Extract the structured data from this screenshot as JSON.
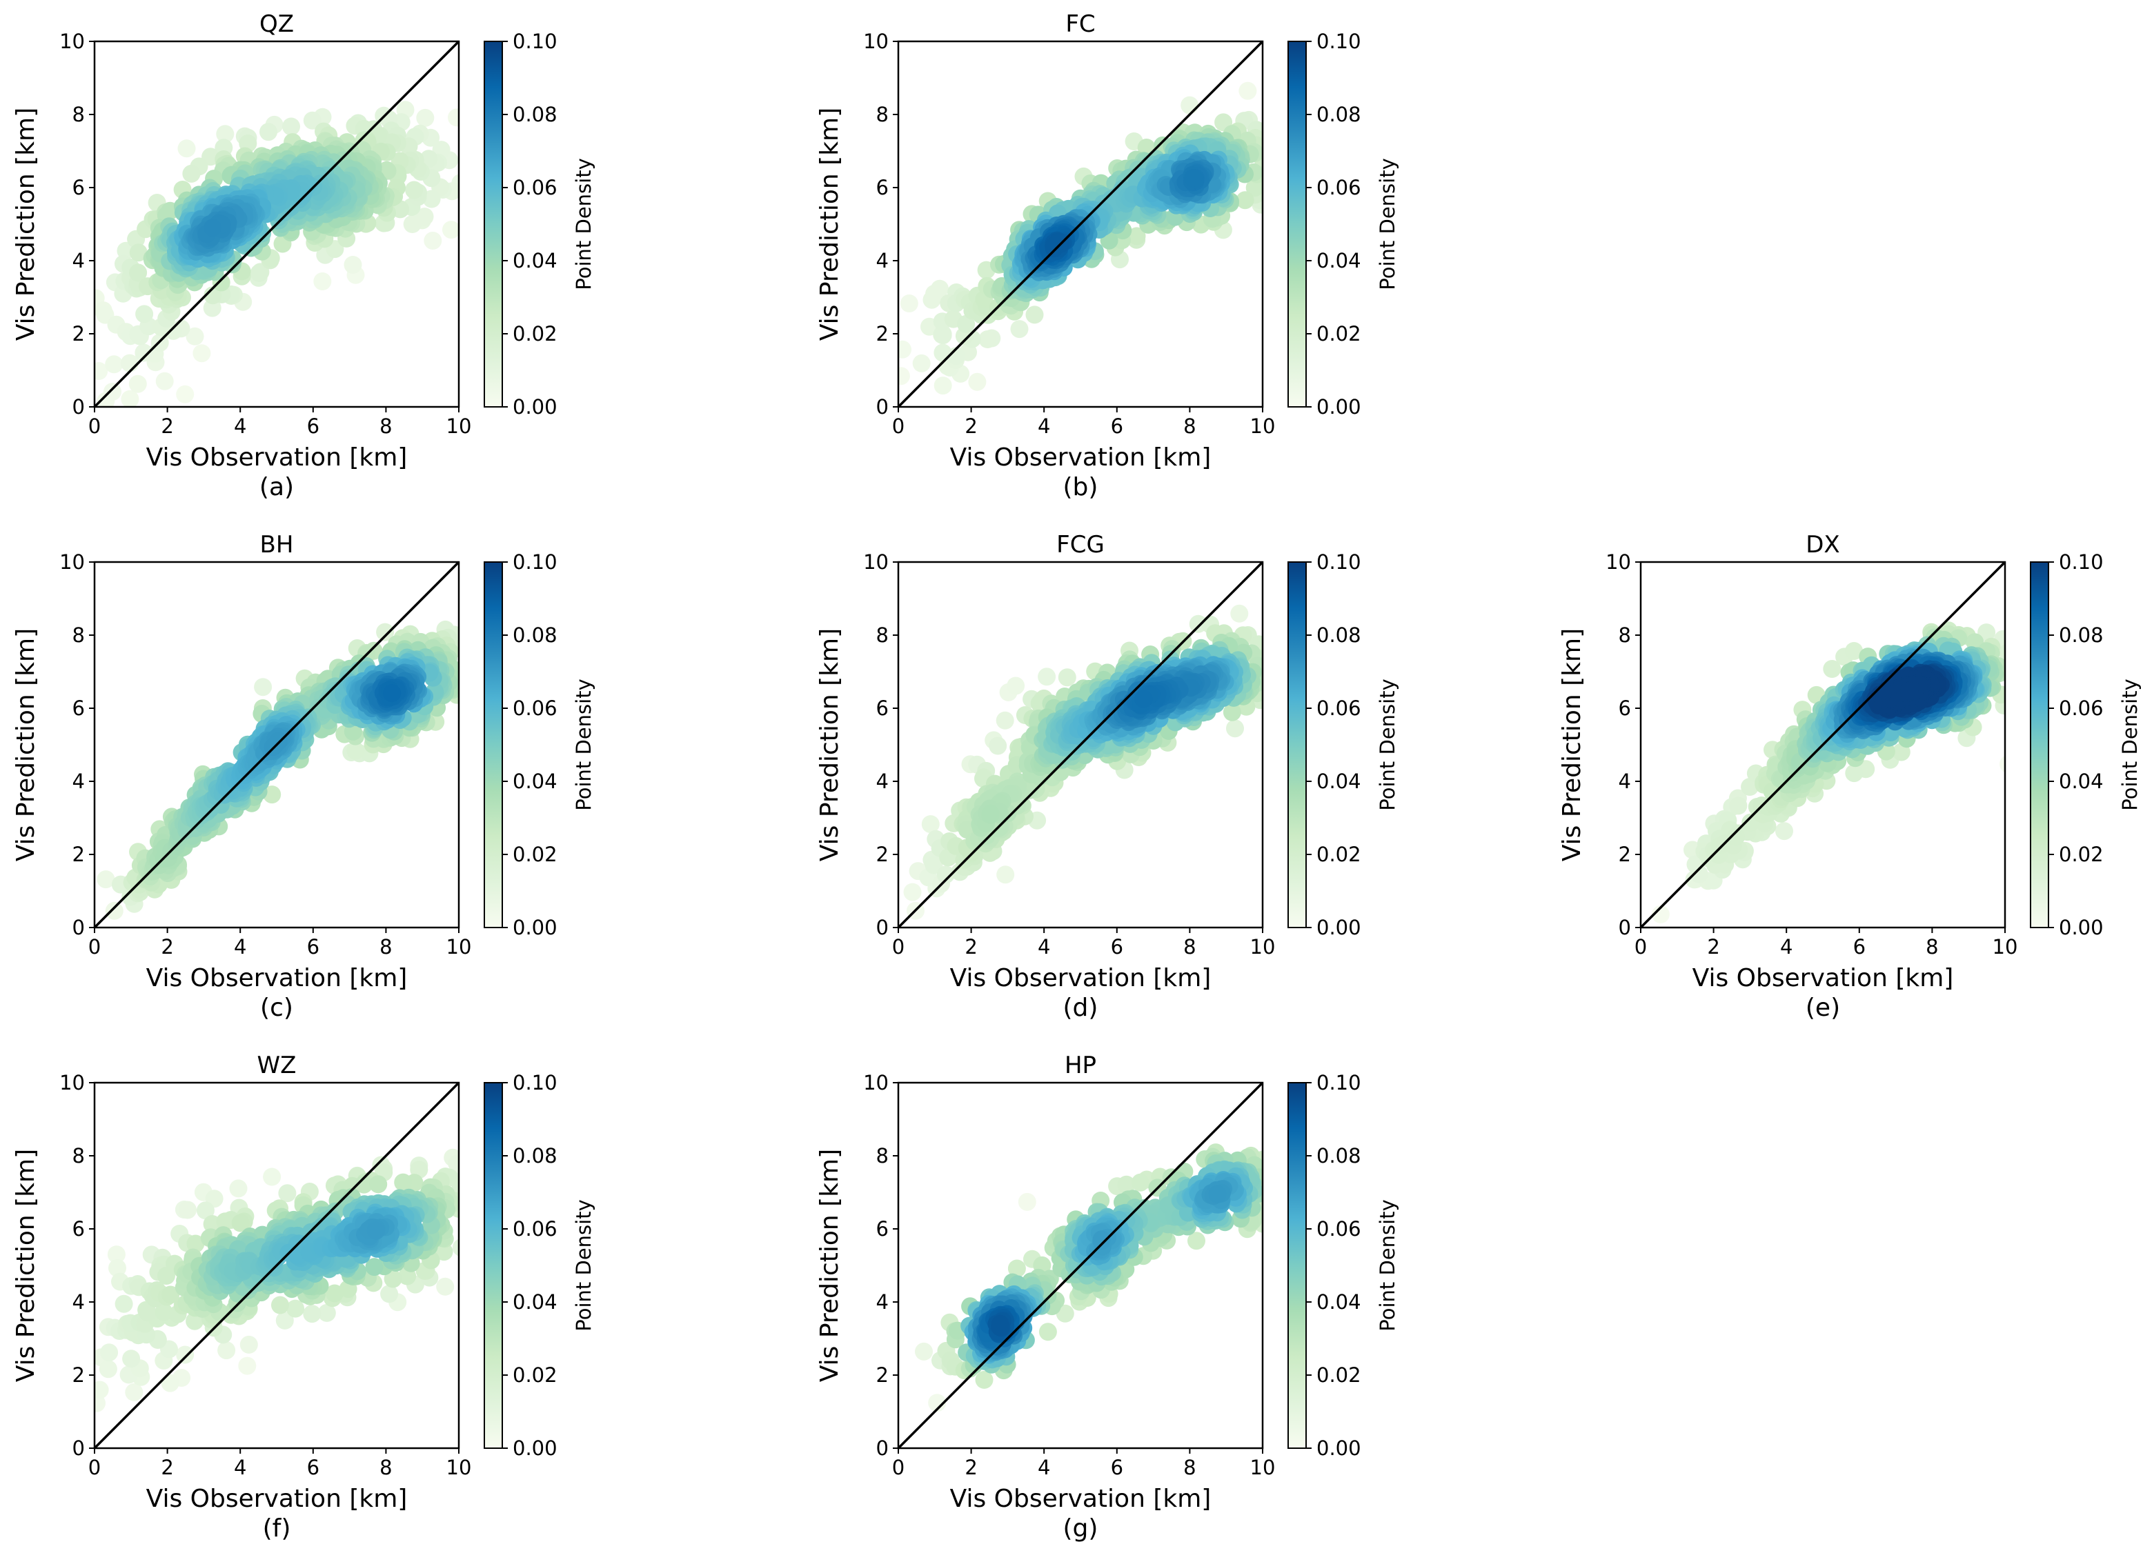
{
  "colorbar": {
    "label": "Point Density",
    "ticks": [
      "0.00",
      "0.02",
      "0.04",
      "0.06",
      "0.08",
      "0.10"
    ],
    "colors": [
      "#f7fcf0",
      "#e0f3db",
      "#ccebc5",
      "#a8ddb5",
      "#7bccc4",
      "#4eb3d3",
      "#2b8cbe",
      "#0868ac",
      "#084081"
    ]
  },
  "chart_data": [
    {
      "type": "scatter",
      "id": "QZ",
      "title": "QZ",
      "sublabel": "(a)",
      "xlabel": "Vis Observation [km]",
      "ylabel": "Vis Prediction [km]",
      "xlim": [
        0,
        10
      ],
      "ylim": [
        0,
        10
      ],
      "ticks": [
        "0",
        "2",
        "4",
        "6",
        "8",
        "10"
      ],
      "reference_line": "y = x",
      "cmax": 0.1,
      "clusters": [
        {
          "cx": 3.2,
          "cy": 4.7,
          "sx": 1.0,
          "sy": 0.8,
          "n": 240,
          "rho": 0.5
        },
        {
          "cx": 6.2,
          "cy": 6.0,
          "sx": 1.9,
          "sy": 0.9,
          "n": 380,
          "rho": 0.3
        },
        {
          "cx": 1.5,
          "cy": 3.0,
          "sx": 1.0,
          "sy": 1.6,
          "n": 60,
          "rho": 0.3
        }
      ]
    },
    {
      "type": "scatter",
      "id": "FC",
      "title": "FC",
      "sublabel": "(b)",
      "xlabel": "Vis Observation [km]",
      "ylabel": "Vis Prediction [km]",
      "xlim": [
        0,
        10
      ],
      "ylim": [
        0,
        10
      ],
      "ticks": [
        "0",
        "2",
        "4",
        "6",
        "8",
        "10"
      ],
      "reference_line": "y = x",
      "cmax": 0.1,
      "clusters": [
        {
          "cx": 4.5,
          "cy": 4.5,
          "sx": 0.9,
          "sy": 0.8,
          "n": 260,
          "rho": 0.75
        },
        {
          "cx": 8.0,
          "cy": 6.2,
          "sx": 1.2,
          "sy": 0.7,
          "n": 300,
          "rho": 0.4
        },
        {
          "cx": 2.0,
          "cy": 2.5,
          "sx": 0.9,
          "sy": 0.9,
          "n": 50,
          "rho": 0.6
        }
      ]
    },
    {
      "type": "scatter",
      "id": "BH",
      "title": "BH",
      "sublabel": "(c)",
      "xlabel": "Vis Observation [km]",
      "ylabel": "Vis Prediction [km]",
      "xlim": [
        0,
        10
      ],
      "ylim": [
        0,
        10
      ],
      "ticks": [
        "0",
        "2",
        "4",
        "6",
        "8",
        "10"
      ],
      "reference_line": "y = x",
      "cmax": 0.1,
      "clusters": [
        {
          "cx": 4.3,
          "cy": 4.4,
          "sx": 1.3,
          "sy": 1.2,
          "n": 300,
          "rho": 0.93
        },
        {
          "cx": 8.2,
          "cy": 6.5,
          "sx": 1.1,
          "sy": 0.7,
          "n": 280,
          "rho": 0.45
        },
        {
          "cx": 1.8,
          "cy": 1.8,
          "sx": 0.6,
          "sy": 0.6,
          "n": 60,
          "rho": 0.8
        }
      ]
    },
    {
      "type": "scatter",
      "id": "FCG",
      "title": "FCG",
      "sublabel": "(d)",
      "xlabel": "Vis Observation [km]",
      "ylabel": "Vis Prediction [km]",
      "xlim": [
        0,
        10
      ],
      "ylim": [
        0,
        10
      ],
      "ticks": [
        "0",
        "2",
        "4",
        "6",
        "8",
        "10"
      ],
      "reference_line": "y = x",
      "cmax": 0.1,
      "clusters": [
        {
          "cx": 5.8,
          "cy": 5.8,
          "sx": 1.4,
          "sy": 0.8,
          "n": 320,
          "rho": 0.6
        },
        {
          "cx": 8.6,
          "cy": 6.8,
          "sx": 1.0,
          "sy": 0.6,
          "n": 200,
          "rho": 0.3
        },
        {
          "cx": 2.5,
          "cy": 3.0,
          "sx": 1.0,
          "sy": 1.0,
          "n": 120,
          "rho": 0.8
        }
      ]
    },
    {
      "type": "scatter",
      "id": "DX",
      "title": "DX",
      "sublabel": "(e)",
      "xlabel": "Vis Observation [km]",
      "ylabel": "Vis Prediction [km]",
      "xlim": [
        0,
        10
      ],
      "ylim": [
        0,
        10
      ],
      "ticks": [
        "0",
        "2",
        "4",
        "6",
        "8",
        "10"
      ],
      "reference_line": "y = x",
      "cmax": 0.1,
      "clusters": [
        {
          "cx": 7.6,
          "cy": 6.5,
          "sx": 1.3,
          "sy": 0.7,
          "n": 480,
          "rho": 0.5
        },
        {
          "cx": 5.0,
          "cy": 5.0,
          "sx": 1.2,
          "sy": 1.0,
          "n": 180,
          "rho": 0.8
        },
        {
          "cx": 2.5,
          "cy": 2.3,
          "sx": 0.8,
          "sy": 0.8,
          "n": 50,
          "rho": 0.8
        }
      ]
    },
    {
      "type": "scatter",
      "id": "WZ",
      "title": "WZ",
      "sublabel": "(f)",
      "xlabel": "Vis Observation [km]",
      "ylabel": "Vis Prediction [km]",
      "xlim": [
        0,
        10
      ],
      "ylim": [
        0,
        10
      ],
      "ticks": [
        "0",
        "2",
        "4",
        "6",
        "8",
        "10"
      ],
      "reference_line": "y = x",
      "cmax": 0.1,
      "clusters": [
        {
          "cx": 4.5,
          "cy": 5.2,
          "sx": 1.6,
          "sy": 0.9,
          "n": 260,
          "rho": 0.4
        },
        {
          "cx": 8.0,
          "cy": 6.0,
          "sx": 1.3,
          "sy": 0.8,
          "n": 240,
          "rho": 0.3
        },
        {
          "cx": 1.5,
          "cy": 3.2,
          "sx": 0.8,
          "sy": 1.0,
          "n": 50,
          "rho": 0.3
        }
      ]
    },
    {
      "type": "scatter",
      "id": "HP",
      "title": "HP",
      "sublabel": "(g)",
      "xlabel": "Vis Observation [km]",
      "ylabel": "Vis Prediction [km]",
      "xlim": [
        0,
        10
      ],
      "ylim": [
        0,
        10
      ],
      "ticks": [
        "0",
        "2",
        "4",
        "6",
        "8",
        "10"
      ],
      "reference_line": "y = x",
      "cmax": 0.1,
      "clusters": [
        {
          "cx": 2.7,
          "cy": 3.3,
          "sx": 0.6,
          "sy": 0.6,
          "n": 160,
          "rho": 0.6
        },
        {
          "cx": 5.5,
          "cy": 5.5,
          "sx": 1.0,
          "sy": 0.8,
          "n": 170,
          "rho": 0.6
        },
        {
          "cx": 8.8,
          "cy": 6.9,
          "sx": 0.9,
          "sy": 0.5,
          "n": 160,
          "rho": 0.3
        }
      ]
    }
  ]
}
